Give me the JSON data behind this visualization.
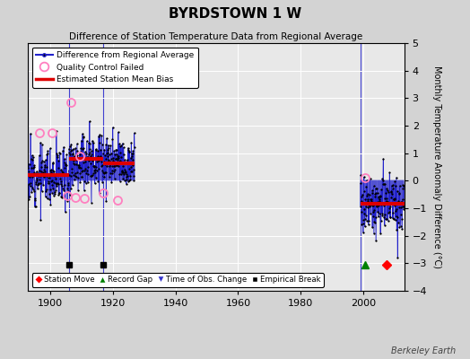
{
  "title": "BYRDSTOWN 1 W",
  "subtitle": "Difference of Station Temperature Data from Regional Average",
  "ylabel": "Monthly Temperature Anomaly Difference (°C)",
  "credit": "Berkeley Earth",
  "xlim": [
    1893,
    2013
  ],
  "ylim": [
    -4,
    5
  ],
  "yticks": [
    -4,
    -3,
    -2,
    -1,
    0,
    1,
    2,
    3,
    4,
    5
  ],
  "xticks": [
    1900,
    1920,
    1940,
    1960,
    1980,
    2000
  ],
  "bg_color": "#d3d3d3",
  "plot_bg_color": "#e8e8e8",
  "grid_color": "#ffffff",
  "line_color": "#2222cc",
  "bias_color": "#dd0000",
  "qc_color": "#ff80c0",
  "segments": [
    {
      "start": 1893.0,
      "end": 1906.0,
      "bias": 0.22
    },
    {
      "start": 1906.0,
      "end": 1917.0,
      "bias": 0.78
    },
    {
      "start": 1917.0,
      "end": 1927.0,
      "bias": 0.62
    },
    {
      "start": 1999.0,
      "end": 2013.0,
      "bias": -0.85
    }
  ],
  "vertical_lines": [
    1893.0,
    1906.0,
    1917.0,
    1999.0
  ],
  "qc_failed": [
    [
      1896.5,
      1.75
    ],
    [
      1900.5,
      1.75
    ],
    [
      1905.5,
      -0.55
    ],
    [
      1906.5,
      2.85
    ],
    [
      1908.0,
      -0.6
    ],
    [
      1909.5,
      0.9
    ],
    [
      1911.0,
      -0.65
    ],
    [
      1917.0,
      -0.45
    ],
    [
      1921.5,
      -0.72
    ],
    [
      2000.5,
      0.12
    ]
  ],
  "marker_y": -3.05,
  "station_move": [
    2007.5
  ],
  "record_gap": [
    2000.5
  ],
  "empirical_break": [
    1906.0,
    1917.0
  ],
  "obs_change": [],
  "noise_seed": 12,
  "noise_scale": 0.52
}
